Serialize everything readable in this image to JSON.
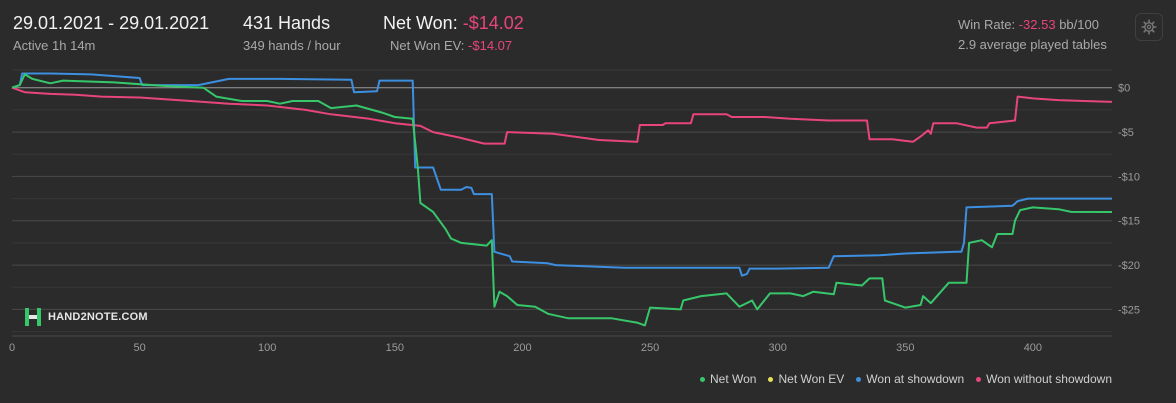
{
  "header": {
    "date_range": "29.01.2021 - 29.01.2021",
    "active_time": "Active 1h 14m",
    "hands": "431 Hands",
    "hands_per_hour": "349 hands / hour",
    "net_won_label": "Net Won:",
    "net_won_value": "-$14.02",
    "net_won_ev_label": "Net Won  EV:",
    "net_won_ev_value": "-$14.07",
    "win_rate_label": "Win Rate:",
    "win_rate_value": "-32.53",
    "win_rate_unit": "bb/100",
    "avg_tables": "2.9 average played tables"
  },
  "logo_text": "HAND2NOTE.COM",
  "colors": {
    "background": "#2b2b2b",
    "negative": "#e8457a",
    "net_won": "#37c76b",
    "net_won_ev": "#e6e05a",
    "won_at_showdown": "#3d8fe0",
    "won_without_showdown": "#e8457a"
  },
  "chart_data": {
    "type": "line",
    "xlim": [
      0,
      431
    ],
    "ylim": [
      -28,
      2
    ],
    "x_ticks": [
      "0",
      "50",
      "100",
      "150",
      "200",
      "250",
      "300",
      "350",
      "400"
    ],
    "y_ticks": [
      "$0",
      "-$5",
      "-$10",
      "-$15",
      "-$20",
      "-$25"
    ],
    "grid": true,
    "legend_position": "bottom-right",
    "series": [
      {
        "name": "Net Won",
        "color": "#37c76b",
        "points": [
          [
            0,
            0
          ],
          [
            3,
            0.3
          ],
          [
            5,
            1.5
          ],
          [
            8,
            1.0
          ],
          [
            15,
            0.5
          ],
          [
            20,
            0.8
          ],
          [
            40,
            0.6
          ],
          [
            60,
            0.2
          ],
          [
            75,
            0
          ],
          [
            80,
            -1
          ],
          [
            90,
            -1.5
          ],
          [
            100,
            -1.5
          ],
          [
            105,
            -1.8
          ],
          [
            110,
            -1.5
          ],
          [
            120,
            -1.5
          ],
          [
            125,
            -2.3
          ],
          [
            135,
            -2
          ],
          [
            145,
            -2.8
          ],
          [
            150,
            -3.3
          ],
          [
            157,
            -3.5
          ],
          [
            159,
            -9
          ],
          [
            160,
            -13
          ],
          [
            165,
            -14
          ],
          [
            170,
            -16
          ],
          [
            172,
            -17
          ],
          [
            176,
            -17.5
          ],
          [
            186,
            -17.8
          ],
          [
            188,
            -17.2
          ],
          [
            189,
            -24.7
          ],
          [
            191,
            -23
          ],
          [
            194,
            -23.5
          ],
          [
            198,
            -24.5
          ],
          [
            205,
            -24.7
          ],
          [
            210,
            -25.5
          ],
          [
            218,
            -26
          ],
          [
            235,
            -26
          ],
          [
            245,
            -26.5
          ],
          [
            248,
            -26.8
          ],
          [
            250,
            -24.8
          ],
          [
            262,
            -25
          ],
          [
            263,
            -24
          ],
          [
            270,
            -23.5
          ],
          [
            280,
            -23.2
          ],
          [
            285,
            -24.7
          ],
          [
            290,
            -24
          ],
          [
            292,
            -25
          ],
          [
            297,
            -23.2
          ],
          [
            305,
            -23.2
          ],
          [
            310,
            -23.5
          ],
          [
            314,
            -23
          ],
          [
            322,
            -23.3
          ],
          [
            323,
            -22
          ],
          [
            333,
            -22.3
          ],
          [
            336,
            -21.5
          ],
          [
            341,
            -21.5
          ],
          [
            342,
            -24
          ],
          [
            350,
            -24.8
          ],
          [
            356,
            -24.5
          ],
          [
            357,
            -23.5
          ],
          [
            360,
            -24.3
          ],
          [
            367,
            -22
          ],
          [
            374,
            -22
          ],
          [
            375,
            -17.5
          ],
          [
            380,
            -17.2
          ],
          [
            384,
            -18
          ],
          [
            386,
            -16.5
          ],
          [
            392,
            -16.5
          ],
          [
            393,
            -15
          ],
          [
            395,
            -13.8
          ],
          [
            400,
            -13.5
          ],
          [
            410,
            -13.7
          ],
          [
            415,
            -14
          ],
          [
            431,
            -14.02
          ]
        ]
      },
      {
        "name": "Net Won  EV",
        "color": "#e6e05a",
        "points": []
      },
      {
        "name": "Won at showdown",
        "color": "#3d8fe0",
        "points": [
          [
            0,
            0
          ],
          [
            3,
            0.3
          ],
          [
            4,
            1.6
          ],
          [
            15,
            1.6
          ],
          [
            31,
            1.5
          ],
          [
            50,
            1.1
          ],
          [
            51,
            0.3
          ],
          [
            73,
            0.3
          ],
          [
            85,
            1
          ],
          [
            105,
            1
          ],
          [
            133,
            0.9
          ],
          [
            134,
            -0.5
          ],
          [
            143,
            -0.4
          ],
          [
            144,
            0.8
          ],
          [
            157,
            0.8
          ],
          [
            158,
            -9
          ],
          [
            165,
            -9
          ],
          [
            168,
            -11.5
          ],
          [
            176,
            -11.5
          ],
          [
            178,
            -11.2
          ],
          [
            180,
            -11.3
          ],
          [
            181,
            -12
          ],
          [
            188,
            -12
          ],
          [
            189,
            -18.5
          ],
          [
            195,
            -19
          ],
          [
            196,
            -19.6
          ],
          [
            210,
            -19.8
          ],
          [
            213,
            -20
          ],
          [
            240,
            -20.3
          ],
          [
            260,
            -20.3
          ],
          [
            285,
            -20.3
          ],
          [
            286,
            -21.2
          ],
          [
            288,
            -21
          ],
          [
            289,
            -20.4
          ],
          [
            300,
            -20.4
          ],
          [
            320,
            -20.3
          ],
          [
            322,
            -19
          ],
          [
            340,
            -18.9
          ],
          [
            350,
            -18.7
          ],
          [
            370,
            -18.5
          ],
          [
            372,
            -18.5
          ],
          [
            373,
            -17.5
          ],
          [
            374,
            -13.5
          ],
          [
            392,
            -13.3
          ],
          [
            394,
            -12.8
          ],
          [
            398,
            -12.5
          ],
          [
            431,
            -12.5
          ]
        ]
      },
      {
        "name": "Won without showdown",
        "color": "#e8457a",
        "points": [
          [
            0,
            0
          ],
          [
            5,
            -0.5
          ],
          [
            15,
            -0.7
          ],
          [
            25,
            -0.8
          ],
          [
            35,
            -1
          ],
          [
            50,
            -1.1
          ],
          [
            70,
            -1.5
          ],
          [
            85,
            -1.8
          ],
          [
            100,
            -2
          ],
          [
            115,
            -2.5
          ],
          [
            125,
            -3
          ],
          [
            140,
            -3.5
          ],
          [
            150,
            -4
          ],
          [
            160,
            -4.3
          ],
          [
            165,
            -5
          ],
          [
            175,
            -5.6
          ],
          [
            185,
            -6.3
          ],
          [
            193,
            -6.3
          ],
          [
            194,
            -5
          ],
          [
            212,
            -5.2
          ],
          [
            220,
            -5.5
          ],
          [
            230,
            -5.9
          ],
          [
            245,
            -6.1
          ],
          [
            246,
            -4.2
          ],
          [
            255,
            -4.2
          ],
          [
            256,
            -4
          ],
          [
            266,
            -4
          ],
          [
            267,
            -3
          ],
          [
            280,
            -3
          ],
          [
            282,
            -3.3
          ],
          [
            295,
            -3.3
          ],
          [
            305,
            -3.5
          ],
          [
            320,
            -3.7
          ],
          [
            335,
            -3.7
          ],
          [
            336,
            -5.8
          ],
          [
            345,
            -5.8
          ],
          [
            350,
            -6
          ],
          [
            353,
            -6.1
          ],
          [
            356,
            -5.5
          ],
          [
            359,
            -4.8
          ],
          [
            360,
            -5.2
          ],
          [
            361,
            -4
          ],
          [
            370,
            -4
          ],
          [
            378,
            -4.5
          ],
          [
            382,
            -4.5
          ],
          [
            383,
            -4
          ],
          [
            393,
            -3.7
          ],
          [
            394,
            -1
          ],
          [
            400,
            -1.2
          ],
          [
            410,
            -1.4
          ],
          [
            420,
            -1.5
          ],
          [
            431,
            -1.6
          ]
        ]
      }
    ]
  }
}
